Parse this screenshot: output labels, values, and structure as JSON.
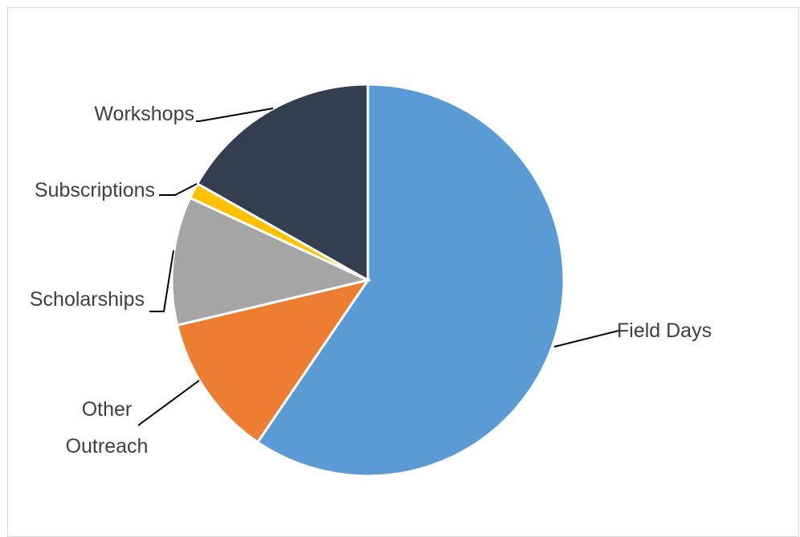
{
  "chart_data": {
    "type": "pie",
    "title": "",
    "start_angle_deg": 0,
    "direction": "clockwise",
    "slices": [
      {
        "key": "field_days",
        "label_lines": [
          "Field Days"
        ],
        "value": 59.5,
        "color": "#5b9bd5"
      },
      {
        "key": "other_outreach",
        "label_lines": [
          "Other",
          "Outreach"
        ],
        "value": 11.8,
        "color": "#ed7d31"
      },
      {
        "key": "scholarships",
        "label_lines": [
          "Scholarships"
        ],
        "value": 10.6,
        "color": "#a5a5a5"
      },
      {
        "key": "subscriptions",
        "label_lines": [
          "Subscriptions"
        ],
        "value": 1.3,
        "color": "#ffc000"
      },
      {
        "key": "workshops",
        "label_lines": [
          "Workshops"
        ],
        "value": 16.8,
        "color": "#333f50"
      }
    ],
    "legend": "none",
    "data_labels": "category names with leader lines"
  }
}
